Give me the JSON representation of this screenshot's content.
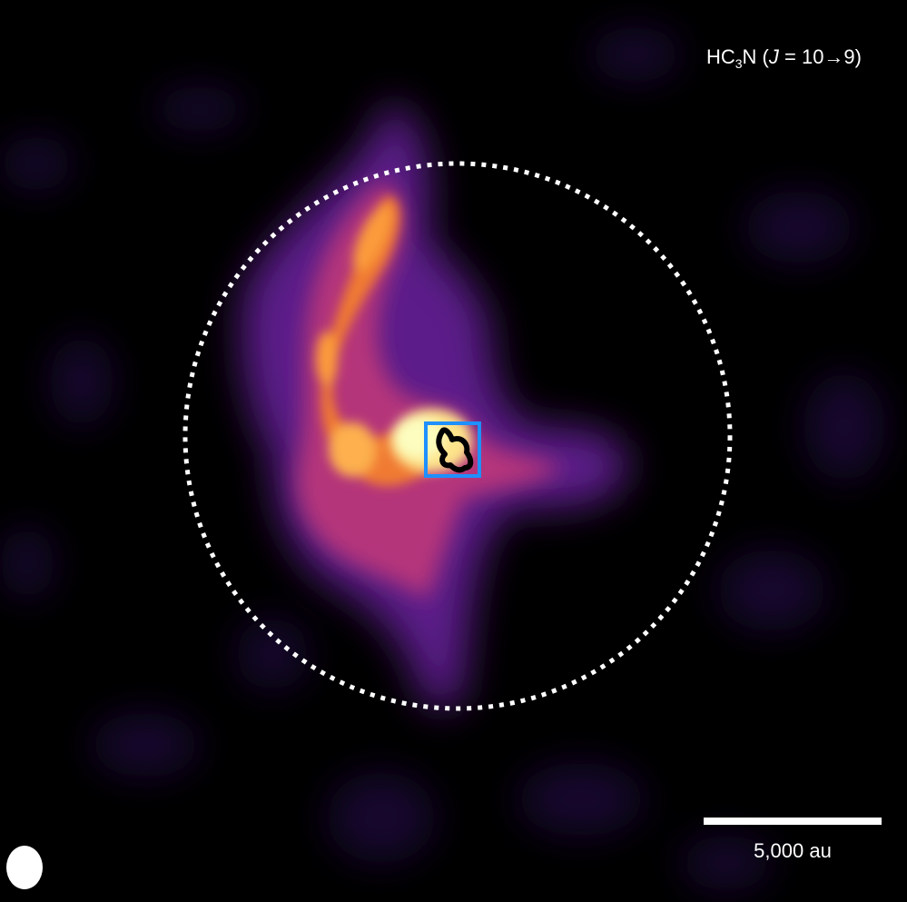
{
  "line_label": {
    "molecule_prefix": "HC",
    "molecule_subscript": "3",
    "molecule_suffix": "N",
    "open_paren": " (",
    "quantum_symbol": "J",
    "transition": " = 10→9)"
  },
  "scale_bar": {
    "label": "5,000 au"
  },
  "colors": {
    "background": "#000000",
    "colormap": [
      "#0d0221",
      "#3b0f70",
      "#8c2981",
      "#de4968",
      "#fe9f6d",
      "#fcfdbf"
    ],
    "dotted_circle": "#ffffff",
    "box": "#1e90ff",
    "contour": "#000000",
    "beam": "#ffffff"
  }
}
